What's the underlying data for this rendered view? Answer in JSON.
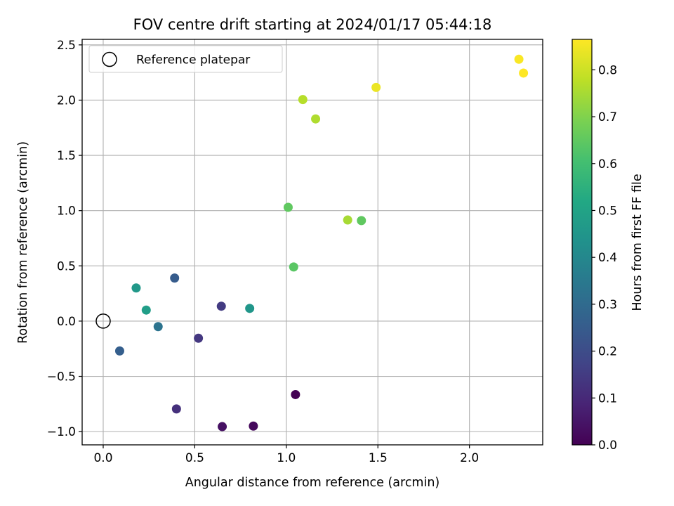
{
  "chart_data": {
    "type": "scatter",
    "title": "FOV centre drift starting at 2024/01/17 05:44:18",
    "xlabel": "Angular distance from reference (arcmin)",
    "ylabel": "Rotation from reference (arcmin)",
    "xlim": [
      -0.115,
      2.4
    ],
    "ylim": [
      -1.12,
      2.55
    ],
    "xticks": [
      0.0,
      0.5,
      1.0,
      1.5,
      2.0
    ],
    "xtick_labels": [
      "0.0",
      "0.5",
      "1.0",
      "1.5",
      "2.0"
    ],
    "yticks": [
      -1.0,
      -0.5,
      0.0,
      0.5,
      1.0,
      1.5,
      2.0,
      2.5
    ],
    "ytick_labels": [
      "−1.0",
      "−0.5",
      "0.0",
      "0.5",
      "1.0",
      "1.5",
      "2.0",
      "2.5"
    ],
    "grid": true,
    "colormap": "viridis",
    "colorbar": {
      "label": "Hours from first FF file",
      "range": [
        0.0,
        0.865
      ],
      "ticks": [
        0.0,
        0.1,
        0.2,
        0.3,
        0.4,
        0.5,
        0.6,
        0.7,
        0.8
      ],
      "tick_labels": [
        "0.0",
        "0.1",
        "0.2",
        "0.3",
        "0.4",
        "0.5",
        "0.6",
        "0.7",
        "0.8"
      ]
    },
    "reference": {
      "label": "Reference platepar",
      "x": 0.0,
      "y": 0.0,
      "legend_position": "upper-left"
    },
    "points": [
      {
        "x": 1.05,
        "y": -0.665,
        "hours": 0.0
      },
      {
        "x": 0.82,
        "y": -0.95,
        "hours": 0.02
      },
      {
        "x": 0.65,
        "y": -0.955,
        "hours": 0.04
      },
      {
        "x": 0.4,
        "y": -0.795,
        "hours": 0.12
      },
      {
        "x": 0.52,
        "y": -0.155,
        "hours": 0.14
      },
      {
        "x": 0.645,
        "y": 0.135,
        "hours": 0.15
      },
      {
        "x": 0.39,
        "y": 0.39,
        "hours": 0.25
      },
      {
        "x": 0.09,
        "y": -0.27,
        "hours": 0.26
      },
      {
        "x": 0.3,
        "y": -0.05,
        "hours": 0.33
      },
      {
        "x": 0.8,
        "y": 0.115,
        "hours": 0.45
      },
      {
        "x": 0.18,
        "y": 0.3,
        "hours": 0.46
      },
      {
        "x": 0.235,
        "y": 0.1,
        "hours": 0.48
      },
      {
        "x": 1.04,
        "y": 0.49,
        "hours": 0.64
      },
      {
        "x": 1.01,
        "y": 1.03,
        "hours": 0.65
      },
      {
        "x": 1.41,
        "y": 0.91,
        "hours": 0.65
      },
      {
        "x": 1.335,
        "y": 0.915,
        "hours": 0.75
      },
      {
        "x": 1.16,
        "y": 1.83,
        "hours": 0.76
      },
      {
        "x": 1.09,
        "y": 2.005,
        "hours": 0.77
      },
      {
        "x": 1.49,
        "y": 2.115,
        "hours": 0.84
      },
      {
        "x": 2.27,
        "y": 2.37,
        "hours": 0.86
      },
      {
        "x": 2.295,
        "y": 2.245,
        "hours": 0.865
      }
    ]
  }
}
